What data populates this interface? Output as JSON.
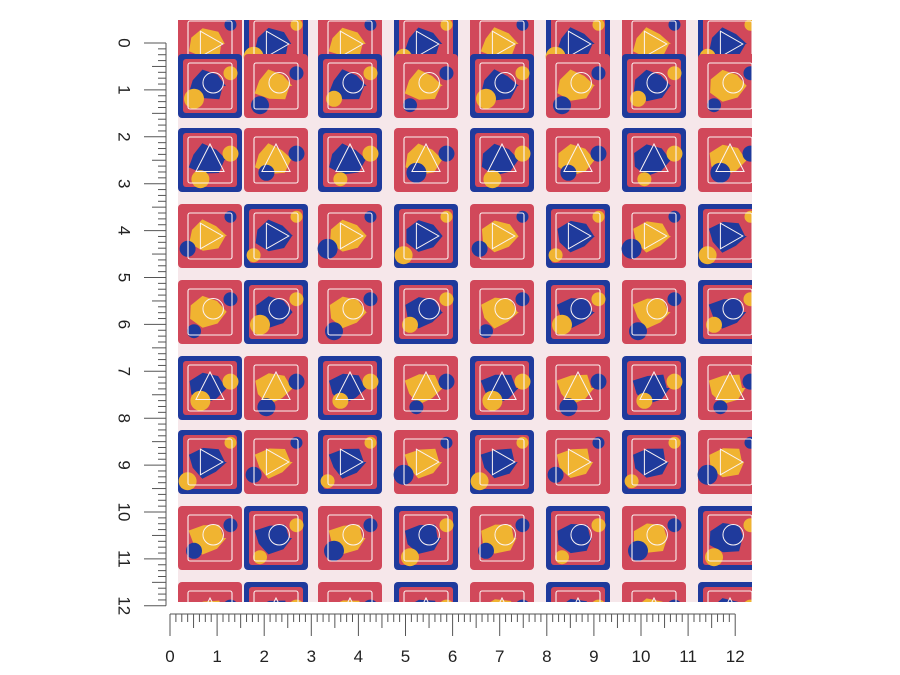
{
  "image": {
    "subject": "pattern-swatch",
    "colors": {
      "background": "#f6e7ea",
      "red": "#d1485a",
      "blue": "#1f3a9c",
      "yellow": "#f0b431",
      "outline": "#fbf3f3",
      "ruler": "#555555",
      "label": "#222222"
    }
  },
  "ruler_left": {
    "labels": [
      "0",
      "1",
      "2",
      "3",
      "4",
      "5",
      "6",
      "7",
      "8",
      "9",
      "10",
      "11",
      "12"
    ]
  },
  "ruler_bottom": {
    "labels": [
      "0",
      "1",
      "2",
      "3",
      "4",
      "5",
      "6",
      "7",
      "8",
      "9",
      "10",
      "11",
      "12"
    ]
  }
}
